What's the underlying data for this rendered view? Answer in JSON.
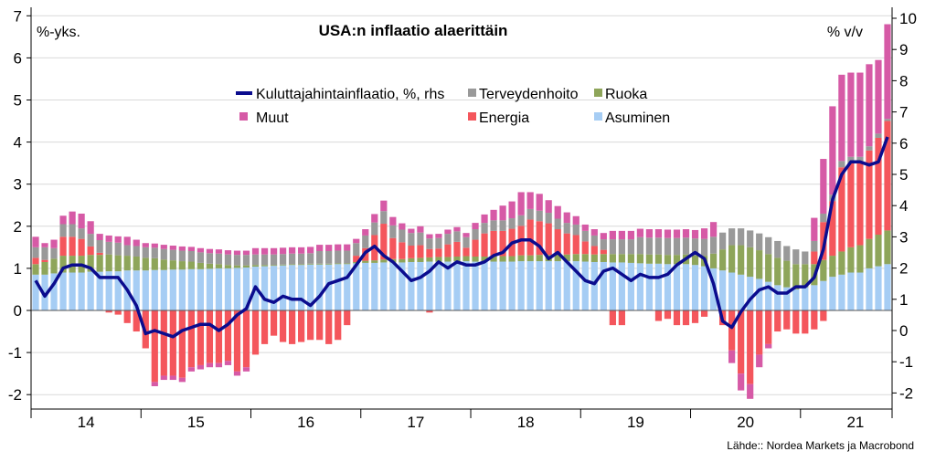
{
  "chart_data": {
    "type": "bar",
    "title": "USA:n inflaatio alaerittäin",
    "ylabel_left": "%-yks.",
    "ylabel_right": "% v/v",
    "source": "Lähde:: Nordea Markets ja Macrobond",
    "ylim_left": [
      -2.2,
      7.2
    ],
    "ylim_right": [
      -2.2,
      10.3
    ],
    "yticks_left": [
      "-2",
      "-1",
      "0",
      "1",
      "2",
      "3",
      "4",
      "5",
      "6",
      "7"
    ],
    "yticks_right": [
      "-2",
      "-1",
      "0",
      "1",
      "2",
      "3",
      "4",
      "5",
      "6",
      "7",
      "8",
      "9",
      "10"
    ],
    "x_start": "2014-01",
    "year_labels": [
      "14",
      "15",
      "16",
      "17",
      "18",
      "19",
      "20",
      "21"
    ],
    "legend_position": "top-center",
    "grid": true,
    "colors": {
      "Asuminen": "#a6cdf4",
      "Energia": "#f4565c",
      "Ruoka": "#8ea55a",
      "Terveydenhoito": "#999999",
      "Muut": "#d65aa6",
      "cpi_line": "#0b0c8e"
    },
    "series": [
      {
        "name": "Asuminen",
        "values": [
          0.85,
          0.85,
          0.88,
          0.9,
          0.9,
          0.9,
          0.92,
          0.92,
          0.93,
          0.93,
          0.95,
          0.95,
          0.95,
          0.96,
          0.96,
          0.97,
          0.97,
          0.98,
          0.98,
          0.99,
          1.0,
          1.0,
          1.01,
          1.02,
          1.04,
          1.05,
          1.06,
          1.07,
          1.08,
          1.08,
          1.09,
          1.09,
          1.09,
          1.1,
          1.1,
          1.12,
          1.13,
          1.13,
          1.14,
          1.14,
          1.14,
          1.15,
          1.15,
          1.16,
          1.16,
          1.16,
          1.17,
          1.17,
          1.16,
          1.16,
          1.16,
          1.16,
          1.16,
          1.17,
          1.17,
          1.17,
          1.17,
          1.17,
          1.17,
          1.17,
          1.16,
          1.15,
          1.15,
          1.14,
          1.14,
          1.13,
          1.12,
          1.11,
          1.11,
          1.1,
          1.1,
          1.1,
          1.08,
          1.05,
          1.0,
          0.95,
          0.9,
          0.85,
          0.8,
          0.75,
          0.68,
          0.6,
          0.55,
          0.5,
          0.55,
          0.6,
          0.7,
          0.8,
          0.85,
          0.9,
          0.9,
          1.0,
          1.05,
          1.1
        ],
        "negative_values": []
      },
      {
        "name": "Ruoka",
        "values": [
          0.25,
          0.3,
          0.35,
          0.4,
          0.4,
          0.4,
          0.4,
          0.4,
          0.4,
          0.38,
          0.35,
          0.33,
          0.3,
          0.28,
          0.25,
          0.22,
          0.2,
          0.18,
          0.15,
          0.12,
          0.1,
          0.08,
          0.06,
          0.05,
          0.04,
          0.03,
          0.02,
          0.02,
          0.02,
          0.02,
          0.02,
          0.02,
          0.02,
          0.02,
          0.02,
          0.03,
          0.05,
          0.06,
          0.07,
          0.08,
          0.08,
          0.09,
          0.1,
          0.1,
          0.11,
          0.11,
          0.11,
          0.12,
          0.12,
          0.12,
          0.13,
          0.13,
          0.13,
          0.14,
          0.14,
          0.15,
          0.15,
          0.16,
          0.16,
          0.17,
          0.18,
          0.18,
          0.19,
          0.2,
          0.2,
          0.21,
          0.22,
          0.22,
          0.22,
          0.22,
          0.22,
          0.23,
          0.23,
          0.25,
          0.35,
          0.5,
          0.65,
          0.7,
          0.7,
          0.68,
          0.66,
          0.65,
          0.63,
          0.6,
          0.55,
          0.5,
          0.5,
          0.5,
          0.55,
          0.6,
          0.65,
          0.7,
          0.75,
          0.8
        ]
      },
      {
        "name": "Energia",
        "values": [
          0.15,
          0.05,
          0.0,
          0.45,
          0.45,
          0.4,
          0.2,
          0.05,
          0.0,
          0.0,
          0.0,
          0.0,
          0.0,
          0.0,
          0.0,
          0.0,
          0.0,
          0.0,
          0.0,
          0.0,
          0.0,
          0.0,
          0.0,
          0.0,
          0.0,
          0.0,
          0.0,
          0.0,
          0.0,
          0.0,
          0.0,
          0.0,
          0.0,
          0.0,
          0.0,
          0.15,
          0.3,
          0.6,
          0.85,
          0.5,
          0.4,
          0.3,
          0.3,
          0.2,
          0.2,
          0.3,
          0.35,
          0.2,
          0.4,
          0.55,
          0.6,
          0.6,
          0.65,
          0.7,
          0.85,
          0.8,
          0.75,
          0.6,
          0.5,
          0.45,
          0.3,
          0.2,
          0.1,
          0.0,
          0.0,
          0.0,
          0.0,
          0.0,
          0.0,
          0.0,
          0.0,
          0.0,
          0.0,
          0.0,
          0.0,
          0.0,
          0.0,
          0.0,
          0.0,
          0.0,
          0.0,
          0.0,
          0.0,
          0.0,
          0.0,
          0.3,
          0.9,
          1.3,
          2.0,
          2.0,
          2.0,
          2.1,
          2.3,
          2.6
        ],
        "negative_values": [
          0.0,
          0.25,
          0.0,
          0.0,
          0.0,
          0.0,
          0.0,
          0.0,
          -0.05,
          -0.1,
          -0.3,
          -0.5,
          -0.9,
          -1.7,
          -1.55,
          -1.55,
          -1.6,
          -1.35,
          -1.3,
          -1.25,
          -1.25,
          -1.2,
          -1.45,
          -1.35,
          -1.05,
          -0.8,
          -0.6,
          -0.75,
          -0.8,
          -0.75,
          -0.7,
          -0.7,
          -0.8,
          -0.7,
          -0.35,
          0.0,
          0.0,
          0.0,
          0.0,
          0.0,
          0.0,
          0.0,
          0.0,
          -0.05,
          0.0,
          0.0,
          0.0,
          0.0,
          0.0,
          0.0,
          0.0,
          0.0,
          0.0,
          0.0,
          0.0,
          0.0,
          0.0,
          0.0,
          0.0,
          0.0,
          0.0,
          0.0,
          0.0,
          -0.35,
          -0.35,
          0.0,
          0.0,
          0.0,
          -0.25,
          -0.2,
          -0.35,
          -0.35,
          -0.3,
          -0.15,
          0.0,
          -0.35,
          -0.95,
          -1.5,
          -1.75,
          -1.05,
          -0.8,
          -0.5,
          -0.45,
          -0.55,
          -0.55,
          -0.45,
          -0.25,
          0.0,
          0.0,
          0.0,
          0.0,
          0.0,
          0.0,
          0.0
        ]
      },
      {
        "name": "Terveydenhoito",
        "values": [
          0.25,
          0.3,
          0.25,
          0.3,
          0.3,
          0.25,
          0.3,
          0.3,
          0.3,
          0.3,
          0.25,
          0.25,
          0.25,
          0.25,
          0.25,
          0.25,
          0.25,
          0.25,
          0.25,
          0.25,
          0.25,
          0.25,
          0.25,
          0.25,
          0.25,
          0.25,
          0.25,
          0.25,
          0.25,
          0.25,
          0.25,
          0.3,
          0.3,
          0.3,
          0.3,
          0.3,
          0.3,
          0.3,
          0.3,
          0.3,
          0.3,
          0.3,
          0.3,
          0.25,
          0.25,
          0.25,
          0.25,
          0.25,
          0.25,
          0.25,
          0.25,
          0.25,
          0.25,
          0.25,
          0.25,
          0.25,
          0.25,
          0.25,
          0.25,
          0.25,
          0.25,
          0.25,
          0.25,
          0.35,
          0.35,
          0.35,
          0.4,
          0.4,
          0.4,
          0.4,
          0.4,
          0.4,
          0.4,
          0.4,
          0.4,
          0.4,
          0.4,
          0.4,
          0.4,
          0.4,
          0.4,
          0.4,
          0.35,
          0.35,
          0.3,
          0.25,
          0.2,
          0.15,
          0.15,
          0.15,
          0.1,
          0.1,
          0.1,
          0.05
        ]
      },
      {
        "name": "Muut",
        "values": [
          0.25,
          0.1,
          0.2,
          0.2,
          0.3,
          0.35,
          0.3,
          0.15,
          0.15,
          0.15,
          0.2,
          0.15,
          0.1,
          0.1,
          0.1,
          0.1,
          0.1,
          0.1,
          0.1,
          0.1,
          0.1,
          0.1,
          0.1,
          0.1,
          0.15,
          0.15,
          0.15,
          0.15,
          0.15,
          0.15,
          0.15,
          0.15,
          0.15,
          0.15,
          0.15,
          0.1,
          0.15,
          0.2,
          0.25,
          0.2,
          0.15,
          0.1,
          0.15,
          0.1,
          0.1,
          0.1,
          0.1,
          0.1,
          0.15,
          0.2,
          0.25,
          0.35,
          0.4,
          0.55,
          0.4,
          0.4,
          0.3,
          0.3,
          0.25,
          0.2,
          0.15,
          0.15,
          0.15,
          0.2,
          0.2,
          0.2,
          0.2,
          0.2,
          0.2,
          0.2,
          0.2,
          0.2,
          0.2,
          0.25,
          0.35,
          0.0,
          0.0,
          0.0,
          0.0,
          0.0,
          0.0,
          0.0,
          0.0,
          0.0,
          0.0,
          0.55,
          1.3,
          2.1,
          2.05,
          2.0,
          2.0,
          1.95,
          1.75,
          2.25
        ],
        "negative_values": [
          0.0,
          0.0,
          0.0,
          0.0,
          0.0,
          0.0,
          0.0,
          0.0,
          0.0,
          0.0,
          0.0,
          0.0,
          0.0,
          -0.1,
          -0.1,
          -0.1,
          -0.1,
          -0.1,
          -0.1,
          -0.1,
          -0.1,
          -0.1,
          -0.1,
          -0.1,
          0.0,
          0.0,
          0.0,
          0.0,
          0.0,
          0.0,
          0.0,
          0.0,
          0.0,
          0.0,
          0.0,
          0.0,
          0.0,
          0.0,
          0.0,
          0.0,
          0.0,
          0.0,
          0.0,
          0.0,
          0.0,
          0.0,
          0.0,
          0.0,
          0.0,
          0.0,
          0.0,
          0.0,
          0.0,
          0.0,
          0.0,
          0.0,
          0.0,
          0.0,
          0.0,
          0.0,
          0.0,
          0.0,
          0.0,
          0.0,
          0.0,
          0.0,
          0.0,
          0.0,
          0.0,
          0.0,
          0.0,
          0.0,
          0.0,
          0.0,
          0.0,
          0.0,
          -0.3,
          -0.4,
          -0.35,
          -0.3,
          -0.1,
          0.0,
          0.0,
          0.0,
          0.0,
          0.0,
          0.0,
          0.0,
          0.0,
          0.0,
          0.0,
          0.0,
          0.0,
          0.0
        ]
      },
      {
        "name": "Kuluttajahintainflaatio, %, rhs",
        "axis": "right",
        "type": "line",
        "values": [
          1.6,
          1.1,
          1.5,
          2.0,
          2.1,
          2.1,
          2.0,
          1.7,
          1.7,
          1.7,
          1.3,
          0.8,
          -0.1,
          0.0,
          -0.1,
          -0.2,
          0.0,
          0.1,
          0.2,
          0.2,
          0.0,
          0.2,
          0.5,
          0.7,
          1.4,
          1.0,
          0.9,
          1.1,
          1.0,
          1.0,
          0.8,
          1.1,
          1.5,
          1.6,
          1.7,
          2.1,
          2.5,
          2.7,
          2.4,
          2.2,
          1.9,
          1.6,
          1.7,
          1.9,
          2.2,
          2.0,
          2.2,
          2.1,
          2.1,
          2.2,
          2.4,
          2.5,
          2.8,
          2.9,
          2.9,
          2.7,
          2.3,
          2.5,
          2.2,
          1.9,
          1.6,
          1.5,
          1.9,
          2.0,
          1.8,
          1.6,
          1.8,
          1.7,
          1.7,
          1.8,
          2.1,
          2.3,
          2.5,
          2.3,
          1.5,
          0.3,
          0.1,
          0.6,
          1.0,
          1.3,
          1.4,
          1.2,
          1.2,
          1.4,
          1.4,
          1.7,
          2.6,
          4.2,
          5.0,
          5.4,
          5.4,
          5.3,
          5.4,
          6.2
        ]
      }
    ]
  }
}
